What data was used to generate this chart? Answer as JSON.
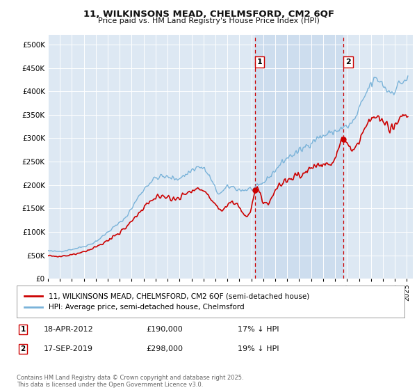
{
  "title": "11, WILKINSONS MEAD, CHELMSFORD, CM2 6QF",
  "subtitle": "Price paid vs. HM Land Registry's House Price Index (HPI)",
  "bg_color": "#dde8f3",
  "hpi_color": "#7ab3d9",
  "price_color": "#cc0000",
  "vline_color": "#cc0000",
  "shade_color": "#ccdcee",
  "ylim": [
    0,
    520000
  ],
  "yticks": [
    0,
    50000,
    100000,
    150000,
    200000,
    250000,
    300000,
    350000,
    400000,
    450000,
    500000
  ],
  "xlim_start": 1995.0,
  "xlim_end": 2025.5,
  "ann1_x": 2012.3,
  "ann2_x": 2019.7,
  "purchase1_x": 2012.3,
  "purchase1_y": 190000,
  "purchase2_x": 2019.7,
  "purchase2_y": 298000,
  "annotation1": {
    "text": "1",
    "date": "18-APR-2012",
    "price": "£190,000",
    "note": "17% ↓ HPI"
  },
  "annotation2": {
    "text": "2",
    "date": "17-SEP-2019",
    "price": "£298,000",
    "note": "19% ↓ HPI"
  },
  "legend_label1": "11, WILKINSONS MEAD, CHELMSFORD, CM2 6QF (semi-detached house)",
  "legend_label2": "HPI: Average price, semi-detached house, Chelmsford",
  "footer": "Contains HM Land Registry data © Crown copyright and database right 2025.\nThis data is licensed under the Open Government Licence v3.0."
}
